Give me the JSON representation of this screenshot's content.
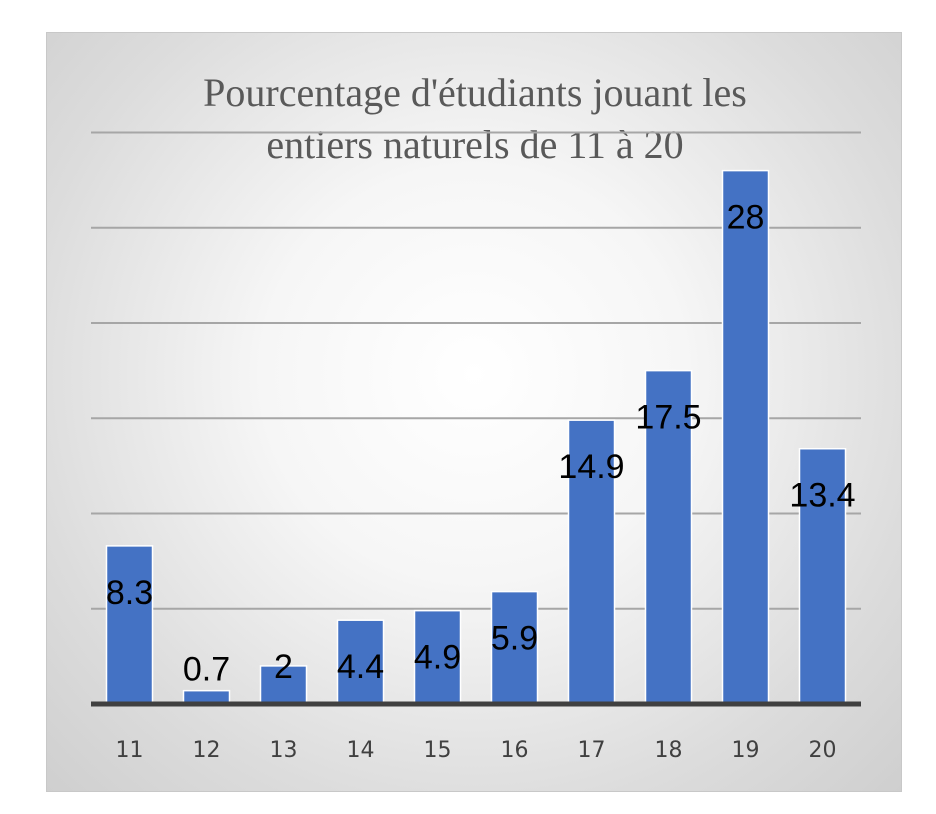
{
  "chart_data": {
    "type": "bar",
    "title_lines": [
      "Pourcentage d'étudiants jouant les",
      "entiers naturels de 11 à 20"
    ],
    "categories": [
      "11",
      "12",
      "13",
      "14",
      "15",
      "16",
      "17",
      "18",
      "19",
      "20"
    ],
    "values": [
      8.3,
      0.7,
      2,
      4.4,
      4.9,
      5.9,
      14.9,
      17.5,
      28,
      13.4
    ],
    "data_labels": [
      "8.3",
      "0.7",
      "2",
      "4.4",
      "4.9",
      "5.9",
      "14.9",
      "17.5",
      "28",
      "13.4"
    ],
    "xlabel": "",
    "ylabel": "",
    "ylim": [
      0,
      30
    ],
    "y_gridlines": [
      5,
      10,
      15,
      20,
      25,
      30
    ],
    "grid": true,
    "legend": "none",
    "bar_color": "#4472c4",
    "y_tick_labels_visible": false
  }
}
